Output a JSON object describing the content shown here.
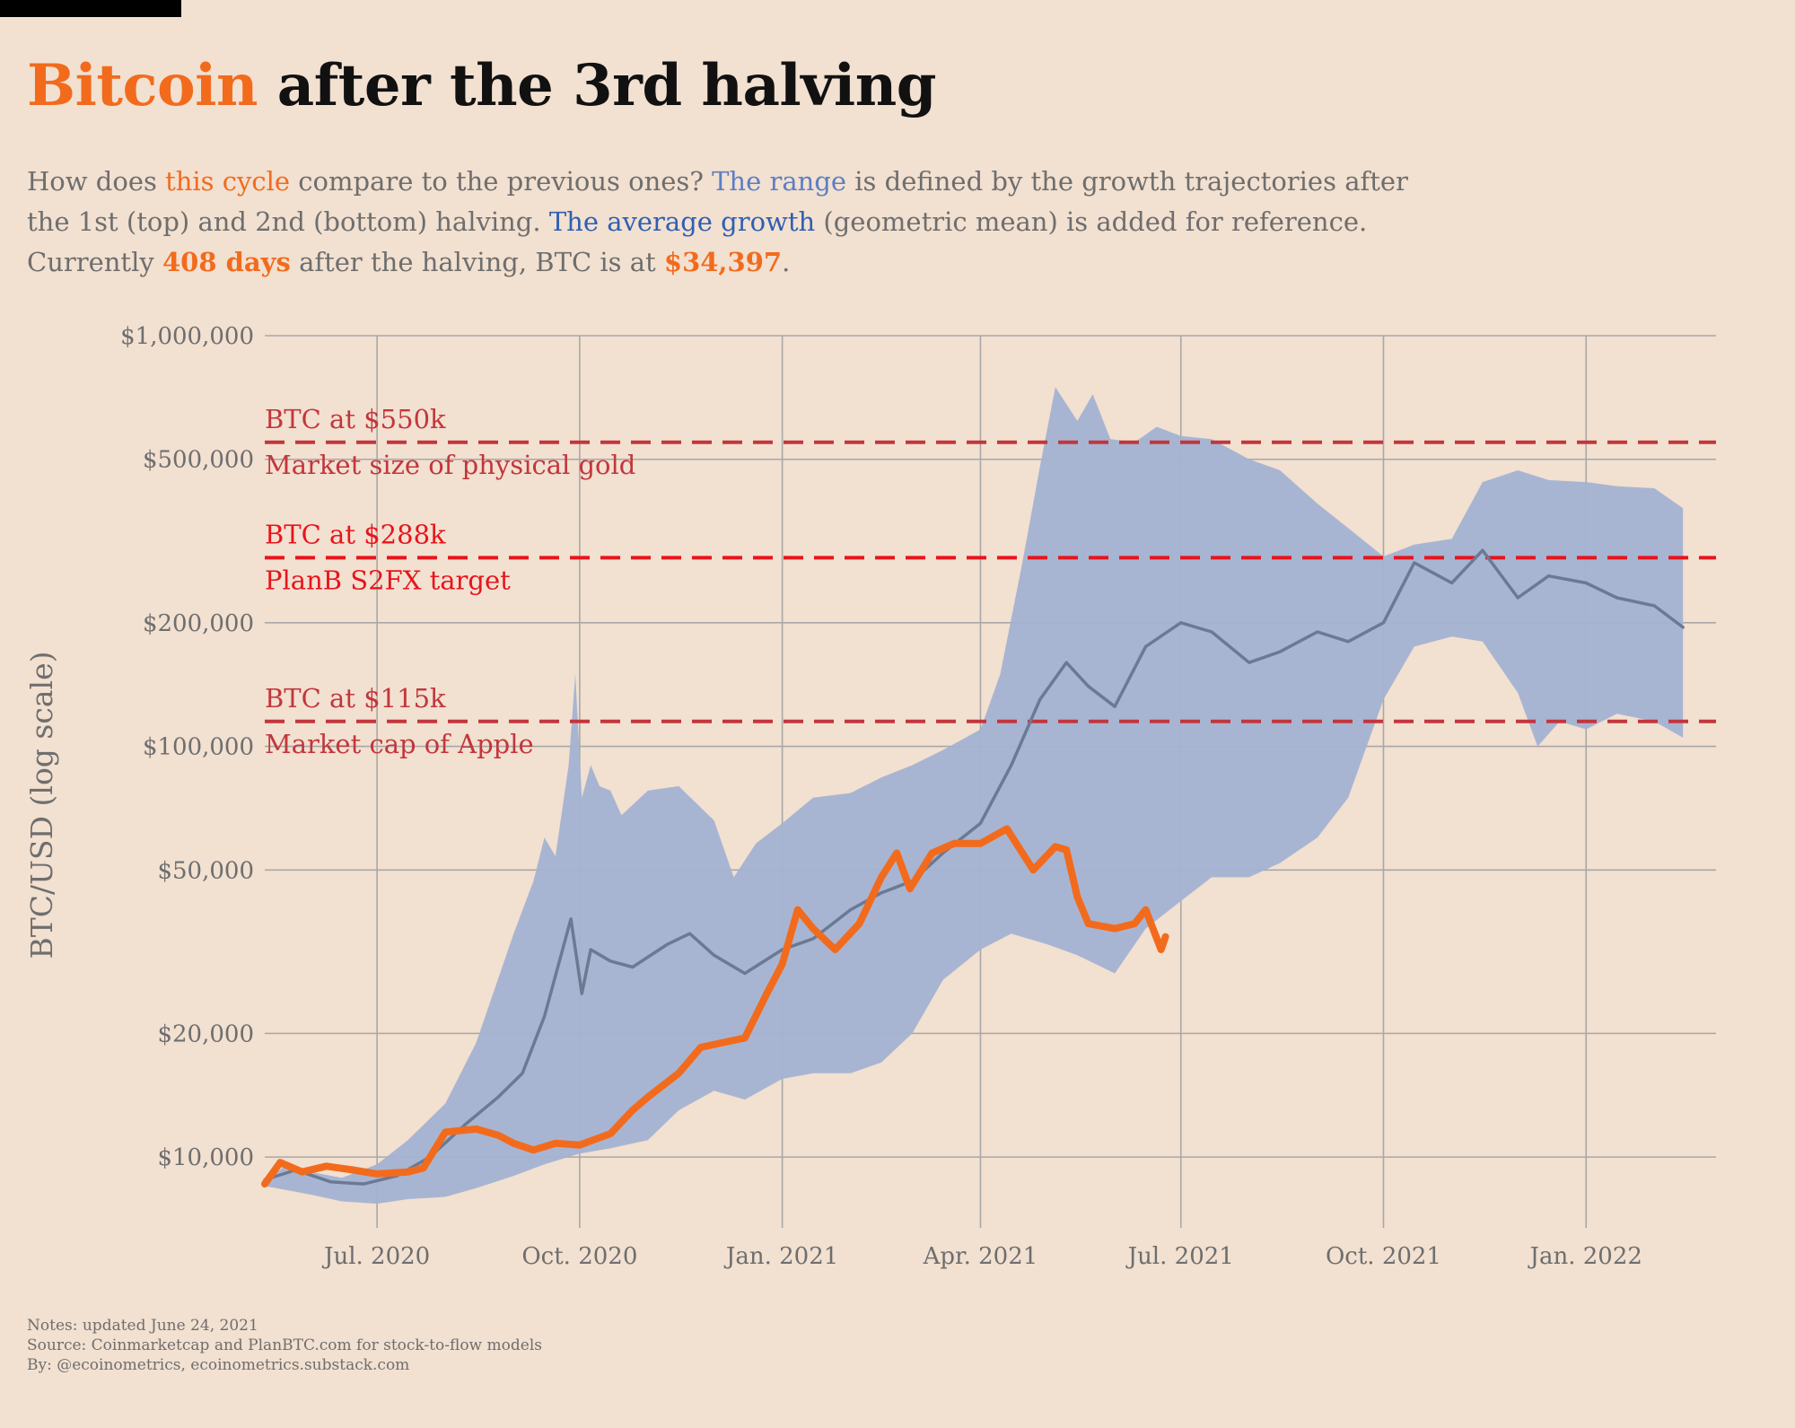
{
  "title": {
    "accent": "Bitcoin",
    "rest": " after the 3rd halving"
  },
  "subtitle": {
    "p1": "How does ",
    "this_cycle": "this cycle",
    "p2": " compare to the previous ones? ",
    "the_range": "The range",
    "p3": " is defined by the growth trajectories after the 1st (top) and 2nd (bottom) halving. ",
    "the_average_growth": "The average growth",
    "p4": " (geometric mean) is added for reference. Currently ",
    "days": "408 days",
    "p5": " after the halving, BTC is at ",
    "price": "$34,397",
    "p6": "."
  },
  "notes": {
    "line1": "Notes: updated June 24, 2021",
    "line2": "Source: Coinmarketcap and PlanBTC.com for stock-to-flow models",
    "line3": "By: @ecoinometrics, ecoinometrics.substack.com"
  },
  "colors": {
    "background": "#f2e0d0",
    "this_cycle": "#f26b1d",
    "range_fill": "#a3b2d2",
    "average_line": "#6a7a94",
    "gold_line": "#c2363d",
    "s2fx_line": "#e8141c",
    "apple_line": "#c2363d",
    "grid": "#a8a8a8",
    "axis_text": "#6e6e6e"
  },
  "chart_data": {
    "type": "line",
    "ylabel": "BTC/USD (log scale)",
    "yscale": "log",
    "ylim": [
      7000,
      1000000
    ],
    "xlim": [
      "2020-05-11",
      "2022-03-01"
    ],
    "y_ticks": [
      {
        "value": 10000,
        "label": "$10,000"
      },
      {
        "value": 20000,
        "label": "$20,000"
      },
      {
        "value": 50000,
        "label": "$50,000"
      },
      {
        "value": 100000,
        "label": "$100,000"
      },
      {
        "value": 200000,
        "label": "$200,000"
      },
      {
        "value": 500000,
        "label": "$500,000"
      },
      {
        "value": 1000000,
        "label": "$1,000,000"
      }
    ],
    "x_ticks": [
      {
        "date": "2020-07-01",
        "label": "Jul. 2020"
      },
      {
        "date": "2020-10-01",
        "label": "Oct. 2020"
      },
      {
        "date": "2021-01-01",
        "label": "Jan. 2021"
      },
      {
        "date": "2021-04-01",
        "label": "Apr. 2021"
      },
      {
        "date": "2021-07-01",
        "label": "Jul. 2021"
      },
      {
        "date": "2021-10-01",
        "label": "Oct. 2021"
      },
      {
        "date": "2022-01-01",
        "label": "Jan. 2022"
      }
    ],
    "grid": true,
    "reference_lines": [
      {
        "value": 550000,
        "label_top": "BTC at $550k",
        "label_bottom": "Market size of physical gold",
        "color": "#c2363d"
      },
      {
        "value": 288000,
        "label_top": "BTC at $288k",
        "label_bottom": "PlanB S2FX target",
        "color": "#e8141c"
      },
      {
        "value": 115000,
        "label_top": "BTC at $115k",
        "label_bottom": "Market cap of Apple",
        "color": "#c2363d"
      }
    ],
    "series": [
      {
        "role": "range_upper",
        "points": [
          [
            "2020-05-11",
            8700
          ],
          [
            "2020-05-20",
            9500
          ],
          [
            "2020-06-01",
            9200
          ],
          [
            "2020-06-15",
            8900
          ],
          [
            "2020-07-01",
            9600
          ],
          [
            "2020-07-15",
            11000
          ],
          [
            "2020-08-01",
            13500
          ],
          [
            "2020-08-15",
            19000
          ],
          [
            "2020-09-01",
            35000
          ],
          [
            "2020-09-10",
            47000
          ],
          [
            "2020-09-15",
            60000
          ],
          [
            "2020-09-20",
            54000
          ],
          [
            "2020-09-26",
            90000
          ],
          [
            "2020-09-29",
            150000
          ],
          [
            "2020-10-02",
            75000
          ],
          [
            "2020-10-06",
            90000
          ],
          [
            "2020-10-10",
            80000
          ],
          [
            "2020-10-15",
            78000
          ],
          [
            "2020-10-20",
            68000
          ],
          [
            "2020-11-01",
            78000
          ],
          [
            "2020-11-15",
            80000
          ],
          [
            "2020-12-01",
            66000
          ],
          [
            "2020-12-10",
            48000
          ],
          [
            "2020-12-20",
            58000
          ],
          [
            "2021-01-01",
            65000
          ],
          [
            "2021-01-15",
            75000
          ],
          [
            "2021-02-01",
            77000
          ],
          [
            "2021-02-15",
            84000
          ],
          [
            "2021-03-01",
            90000
          ],
          [
            "2021-03-15",
            98000
          ],
          [
            "2021-04-01",
            110000
          ],
          [
            "2021-04-10",
            150000
          ],
          [
            "2021-04-20",
            280000
          ],
          [
            "2021-04-28",
            480000
          ],
          [
            "2021-05-05",
            750000
          ],
          [
            "2021-05-15",
            620000
          ],
          [
            "2021-05-22",
            720000
          ],
          [
            "2021-05-30",
            560000
          ],
          [
            "2021-06-10",
            550000
          ],
          [
            "2021-06-20",
            600000
          ],
          [
            "2021-07-01",
            570000
          ],
          [
            "2021-07-15",
            560000
          ],
          [
            "2021-08-01",
            500000
          ],
          [
            "2021-08-15",
            470000
          ],
          [
            "2021-09-01",
            390000
          ],
          [
            "2021-09-15",
            340000
          ],
          [
            "2021-10-01",
            290000
          ],
          [
            "2021-10-15",
            310000
          ],
          [
            "2021-11-01",
            320000
          ],
          [
            "2021-11-15",
            440000
          ],
          [
            "2021-12-01",
            470000
          ],
          [
            "2021-12-15",
            445000
          ],
          [
            "2022-01-01",
            440000
          ],
          [
            "2022-01-15",
            430000
          ],
          [
            "2022-02-01",
            425000
          ],
          [
            "2022-02-14",
            380000
          ]
        ]
      },
      {
        "role": "range_lower",
        "points": [
          [
            "2020-05-11",
            8500
          ],
          [
            "2020-06-01",
            8100
          ],
          [
            "2020-06-15",
            7800
          ],
          [
            "2020-07-01",
            7700
          ],
          [
            "2020-07-15",
            7900
          ],
          [
            "2020-08-01",
            8000
          ],
          [
            "2020-08-15",
            8400
          ],
          [
            "2020-09-01",
            9000
          ],
          [
            "2020-09-15",
            9600
          ],
          [
            "2020-10-01",
            10200
          ],
          [
            "2020-10-15",
            10500
          ],
          [
            "2020-11-01",
            11000
          ],
          [
            "2020-11-15",
            13000
          ],
          [
            "2020-12-01",
            14500
          ],
          [
            "2020-12-15",
            13800
          ],
          [
            "2021-01-01",
            15500
          ],
          [
            "2021-01-15",
            16000
          ],
          [
            "2021-02-01",
            16000
          ],
          [
            "2021-02-15",
            17000
          ],
          [
            "2021-03-01",
            20000
          ],
          [
            "2021-03-15",
            27000
          ],
          [
            "2021-04-01",
            32000
          ],
          [
            "2021-04-15",
            35000
          ],
          [
            "2021-05-01",
            33000
          ],
          [
            "2021-05-15",
            31000
          ],
          [
            "2021-06-01",
            28000
          ],
          [
            "2021-06-15",
            36000
          ],
          [
            "2021-07-01",
            42000
          ],
          [
            "2021-07-15",
            48000
          ],
          [
            "2021-08-01",
            48000
          ],
          [
            "2021-08-15",
            52000
          ],
          [
            "2021-09-01",
            60000
          ],
          [
            "2021-09-15",
            75000
          ],
          [
            "2021-10-01",
            130000
          ],
          [
            "2021-10-15",
            175000
          ],
          [
            "2021-11-01",
            185000
          ],
          [
            "2021-11-15",
            180000
          ],
          [
            "2021-12-01",
            135000
          ],
          [
            "2021-12-10",
            100000
          ],
          [
            "2021-12-20",
            115000
          ],
          [
            "2022-01-01",
            110000
          ],
          [
            "2022-01-15",
            120000
          ],
          [
            "2022-02-01",
            115000
          ],
          [
            "2022-02-14",
            105000
          ]
        ]
      },
      {
        "role": "average_growth",
        "points": [
          [
            "2020-05-11",
            8800
          ],
          [
            "2020-05-25",
            9300
          ],
          [
            "2020-06-10",
            8700
          ],
          [
            "2020-06-25",
            8600
          ],
          [
            "2020-07-10",
            9000
          ],
          [
            "2020-07-25",
            10000
          ],
          [
            "2020-08-10",
            12000
          ],
          [
            "2020-08-25",
            14000
          ],
          [
            "2020-09-05",
            16000
          ],
          [
            "2020-09-15",
            22000
          ],
          [
            "2020-09-27",
            38000
          ],
          [
            "2020-10-02",
            25000
          ],
          [
            "2020-10-06",
            32000
          ],
          [
            "2020-10-15",
            30000
          ],
          [
            "2020-10-25",
            29000
          ],
          [
            "2020-11-10",
            33000
          ],
          [
            "2020-11-20",
            35000
          ],
          [
            "2020-12-01",
            31000
          ],
          [
            "2020-12-15",
            28000
          ],
          [
            "2021-01-01",
            32000
          ],
          [
            "2021-01-15",
            34000
          ],
          [
            "2021-02-01",
            40000
          ],
          [
            "2021-02-15",
            44000
          ],
          [
            "2021-03-01",
            47000
          ],
          [
            "2021-03-15",
            55000
          ],
          [
            "2021-04-01",
            65000
          ],
          [
            "2021-04-15",
            90000
          ],
          [
            "2021-04-28",
            130000
          ],
          [
            "2021-05-10",
            160000
          ],
          [
            "2021-05-20",
            140000
          ],
          [
            "2021-06-01",
            125000
          ],
          [
            "2021-06-15",
            175000
          ],
          [
            "2021-07-01",
            200000
          ],
          [
            "2021-07-15",
            190000
          ],
          [
            "2021-08-01",
            160000
          ],
          [
            "2021-08-15",
            170000
          ],
          [
            "2021-09-01",
            190000
          ],
          [
            "2021-09-15",
            180000
          ],
          [
            "2021-10-01",
            200000
          ],
          [
            "2021-10-15",
            280000
          ],
          [
            "2021-11-01",
            250000
          ],
          [
            "2021-11-15",
            300000
          ],
          [
            "2021-12-01",
            230000
          ],
          [
            "2021-12-15",
            260000
          ],
          [
            "2022-01-01",
            250000
          ],
          [
            "2022-01-15",
            230000
          ],
          [
            "2022-02-01",
            220000
          ],
          [
            "2022-02-14",
            195000
          ]
        ]
      },
      {
        "role": "this_cycle",
        "points": [
          [
            "2020-05-11",
            8600
          ],
          [
            "2020-05-18",
            9700
          ],
          [
            "2020-05-28",
            9200
          ],
          [
            "2020-06-08",
            9500
          ],
          [
            "2020-06-20",
            9300
          ],
          [
            "2020-07-01",
            9100
          ],
          [
            "2020-07-15",
            9200
          ],
          [
            "2020-07-22",
            9400
          ],
          [
            "2020-08-01",
            11500
          ],
          [
            "2020-08-15",
            11700
          ],
          [
            "2020-08-25",
            11300
          ],
          [
            "2020-09-01",
            10800
          ],
          [
            "2020-09-10",
            10400
          ],
          [
            "2020-09-20",
            10800
          ],
          [
            "2020-10-01",
            10700
          ],
          [
            "2020-10-15",
            11400
          ],
          [
            "2020-10-25",
            13000
          ],
          [
            "2020-11-01",
            14000
          ],
          [
            "2020-11-15",
            16000
          ],
          [
            "2020-11-25",
            18500
          ],
          [
            "2020-12-05",
            19000
          ],
          [
            "2020-12-15",
            19500
          ],
          [
            "2020-12-25",
            25000
          ],
          [
            "2021-01-01",
            29500
          ],
          [
            "2021-01-08",
            40000
          ],
          [
            "2021-01-15",
            36000
          ],
          [
            "2021-01-25",
            32000
          ],
          [
            "2021-02-05",
            37000
          ],
          [
            "2021-02-15",
            48000
          ],
          [
            "2021-02-22",
            55000
          ],
          [
            "2021-02-28",
            45000
          ],
          [
            "2021-03-10",
            55000
          ],
          [
            "2021-03-20",
            58000
          ],
          [
            "2021-04-01",
            58000
          ],
          [
            "2021-04-13",
            63000
          ],
          [
            "2021-04-25",
            50000
          ],
          [
            "2021-05-05",
            57000
          ],
          [
            "2021-05-10",
            56000
          ],
          [
            "2021-05-15",
            43000
          ],
          [
            "2021-05-20",
            37000
          ],
          [
            "2021-06-01",
            36000
          ],
          [
            "2021-06-10",
            37000
          ],
          [
            "2021-06-15",
            40000
          ],
          [
            "2021-06-22",
            32000
          ],
          [
            "2021-06-24",
            34397
          ]
        ]
      }
    ]
  }
}
